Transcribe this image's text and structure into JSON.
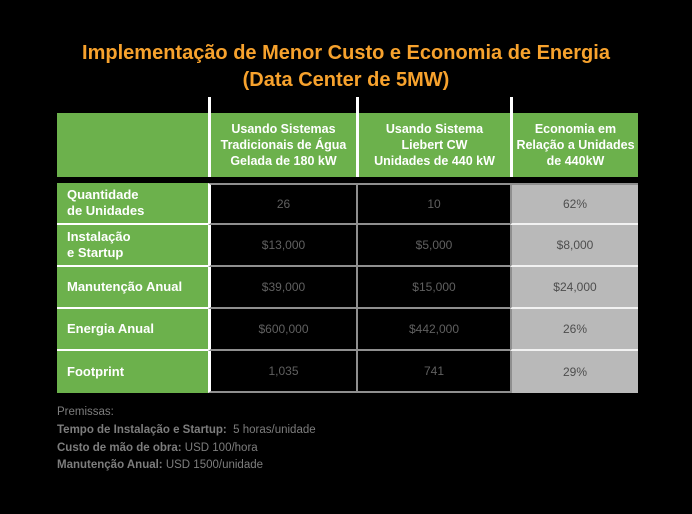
{
  "colors": {
    "background": "#000000",
    "orange": "#F7A22D",
    "green": "#6CB14C",
    "header-text": "#FFFFFF",
    "dark-text": "#606060",
    "savings-bg": "#B9B9B9",
    "savings-text": "#4E4E4E",
    "grid-gray": "#8F8F8F",
    "note-text": "#7D7D7D"
  },
  "title": {
    "line1": "Implementação de Menor Custo e Economia de Energia",
    "line2": "(Data Center de 5MW)"
  },
  "table": {
    "headers": {
      "label": "",
      "traditional": "Usando Sistemas\nTradicionais de Água\nGelada de 180 kW",
      "liebert": "Usando Sistema\nLiebert CW\nUnidades de 440 kW",
      "savings": "Economia em\nRelação a Unidades\nde 440kW"
    },
    "rows": [
      {
        "label": "Quantidade\nde Unidades",
        "traditional": "26",
        "liebert": "10",
        "savings": "62%"
      },
      {
        "label": "Instalação\ne Startup",
        "traditional": "$13,000",
        "liebert": "$5,000",
        "savings": "$8,000"
      },
      {
        "label": "Manutenção Anual",
        "traditional": "$39,000",
        "liebert": "$15,000",
        "savings": "$24,000"
      },
      {
        "label": "Energia Anual",
        "traditional": "$600,000",
        "liebert": "$442,000",
        "savings": "26%"
      },
      {
        "label": "Footprint",
        "traditional": "1,035",
        "liebert": "741",
        "savings": "29%"
      }
    ]
  },
  "notes": {
    "heading": "Premissas:",
    "items": [
      {
        "label": "Tempo de Instalação e Startup:",
        "value": "  5 horas/unidade"
      },
      {
        "label": "Custo de mão de obra:",
        "value": " USD 100/hora"
      },
      {
        "label": "Manutenção Anual:",
        "value": " USD 1500/unidade"
      }
    ]
  },
  "chart_data": {
    "type": "table",
    "title": "Implementação de Menor Custo e Economia de Energia (Data Center de 5MW)",
    "columns": [
      "",
      "Usando Sistemas Tradicionais de Água Gelada de 180 kW",
      "Usando Sistema Liebert CW Unidades de 440 kW",
      "Economia em Relação a Unidades de 440kW"
    ],
    "rows": [
      [
        "Quantidade de Unidades",
        "26",
        "10",
        "62%"
      ],
      [
        "Instalação e Startup",
        "$13,000",
        "$5,000",
        "$8,000"
      ],
      [
        "Manutenção Anual",
        "$39,000",
        "$15,000",
        "$24,000"
      ],
      [
        "Energia Anual",
        "$600,000",
        "$442,000",
        "26%"
      ],
      [
        "Footprint",
        "1,035",
        "741",
        "29%"
      ]
    ],
    "notes": [
      "Premissas:",
      "Tempo de Instalação e Startup: 5 horas/unidade",
      "Custo de mão de obra: USD 100/hora",
      "Manutenção Anual: USD 1500/unidade"
    ]
  }
}
